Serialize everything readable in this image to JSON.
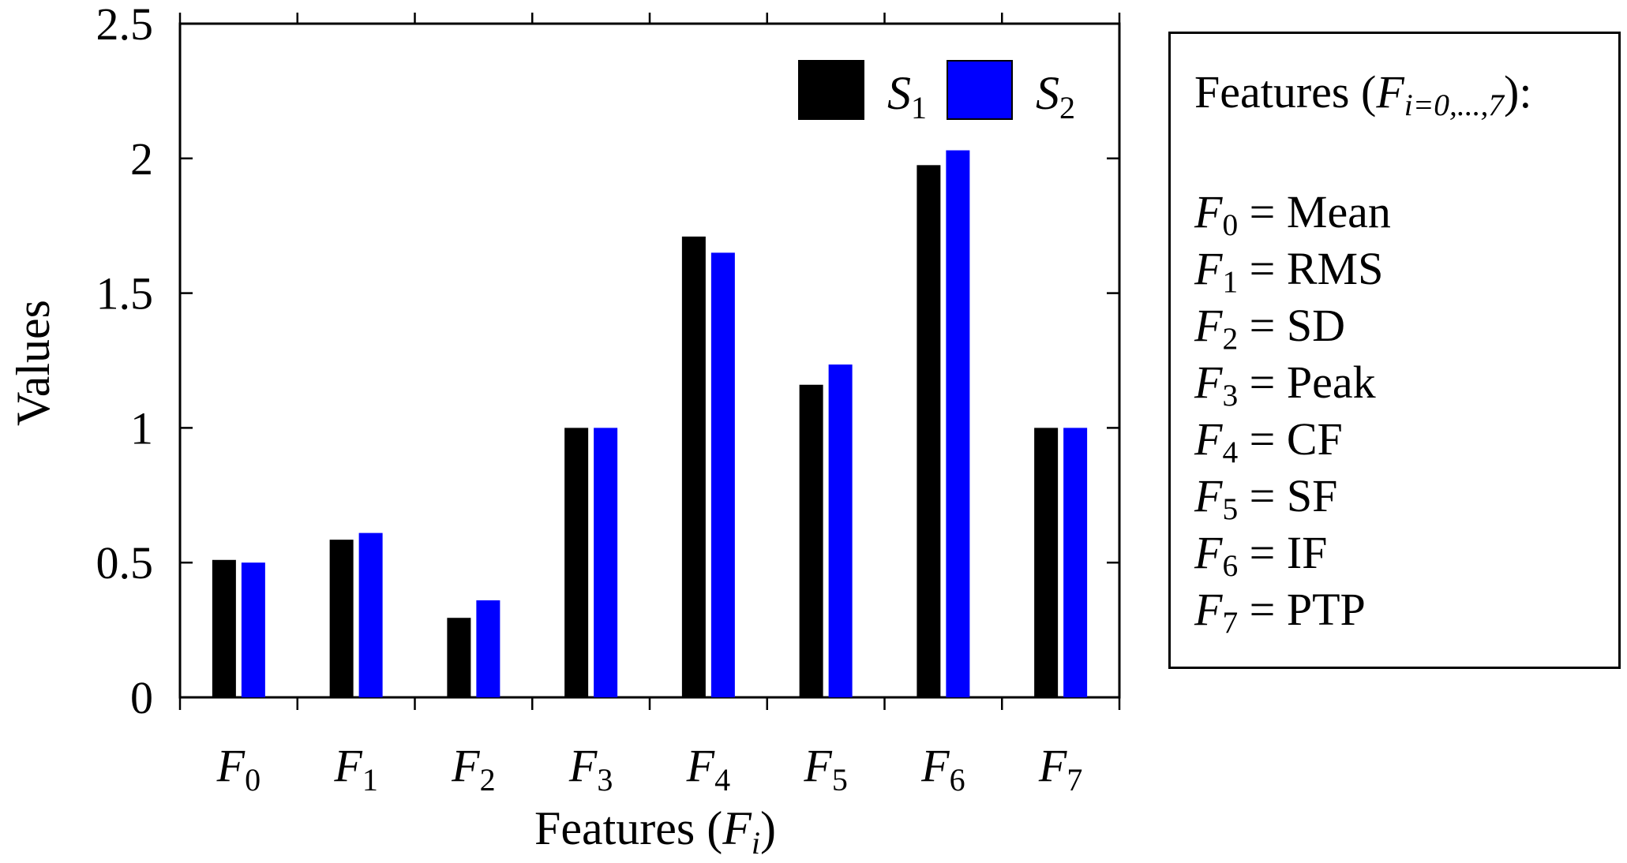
{
  "chart_data": {
    "type": "bar",
    "categories": [
      "F0",
      "F1",
      "F2",
      "F3",
      "F4",
      "F5",
      "F6",
      "F7"
    ],
    "series": [
      {
        "name": "S1",
        "color": "#000000",
        "values": [
          0.51,
          0.585,
          0.295,
          1.0,
          1.71,
          1.16,
          1.975,
          1.0
        ]
      },
      {
        "name": "S2",
        "color": "#0000ff",
        "values": [
          0.5,
          0.61,
          0.36,
          1.0,
          1.65,
          1.235,
          2.03,
          1.0
        ]
      }
    ],
    "ylim": [
      0,
      2.5
    ],
    "yticks": [
      "0",
      "0.5",
      "1",
      "1.5",
      "2",
      "2.5"
    ],
    "ylabel": "Values",
    "xlabel_text": "Features (",
    "xlabel_var": "F",
    "xlabel_sub": "i",
    "xlabel_close": ")",
    "grid": false,
    "legend_position": "top-right"
  },
  "side_panel": {
    "title_text": "Features (",
    "title_var": "F",
    "title_sub": "i=0,...,7",
    "title_close": "):",
    "items": [
      {
        "var": "F",
        "sub": "0",
        "eq": " = Mean"
      },
      {
        "var": "F",
        "sub": "1",
        "eq": " = RMS"
      },
      {
        "var": "F",
        "sub": "2",
        "eq": " = SD"
      },
      {
        "var": "F",
        "sub": "3",
        "eq": " = Peak"
      },
      {
        "var": "F",
        "sub": "4",
        "eq": " = CF"
      },
      {
        "var": "F",
        "sub": "5",
        "eq": " = SF"
      },
      {
        "var": "F",
        "sub": "6",
        "eq": " = IF"
      },
      {
        "var": "F",
        "sub": "7",
        "eq": " = PTP"
      }
    ]
  }
}
